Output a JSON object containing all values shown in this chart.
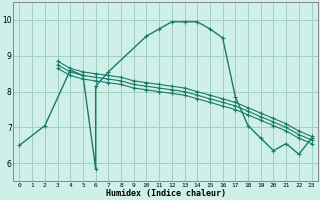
{
  "xlabel": "Humidex (Indice chaleur)",
  "xlim": [
    -0.5,
    23.5
  ],
  "ylim": [
    5.5,
    10.5
  ],
  "xticks": [
    0,
    1,
    2,
    3,
    4,
    5,
    6,
    7,
    8,
    9,
    10,
    11,
    12,
    13,
    14,
    15,
    16,
    17,
    18,
    19,
    20,
    21,
    22,
    23
  ],
  "yticks": [
    6,
    7,
    8,
    9,
    10
  ],
  "bg_color": "#cff0e8",
  "grid_color": "#a0cfc0",
  "line_color": "#1a7a6a",
  "lines": [
    {
      "x": [
        0,
        2,
        4,
        5,
        6,
        6,
        7,
        10,
        11,
        12,
        13,
        14,
        15,
        16,
        17,
        18,
        19,
        20,
        21,
        22,
        23
      ],
      "y": [
        6.5,
        7.05,
        8.6,
        8.45,
        5.85,
        8.15,
        8.55,
        9.55,
        9.75,
        9.95,
        9.95,
        9.95,
        9.75,
        9.5,
        7.85,
        7.05,
        6.7,
        6.35,
        6.55,
        6.25,
        6.7
      ]
    },
    {
      "x": [
        3,
        4,
        5,
        6,
        7,
        8,
        9,
        10,
        11,
        12,
        13,
        14,
        15,
        16,
        17,
        18,
        19,
        20,
        21,
        22,
        23
      ],
      "y": [
        8.85,
        8.65,
        8.55,
        8.5,
        8.45,
        8.4,
        8.3,
        8.25,
        8.2,
        8.15,
        8.1,
        8.0,
        7.9,
        7.8,
        7.7,
        7.55,
        7.4,
        7.25,
        7.1,
        6.9,
        6.75
      ]
    },
    {
      "x": [
        3,
        4,
        5,
        6,
        7,
        8,
        9,
        10,
        11,
        12,
        13,
        14,
        15,
        16,
        17,
        18,
        19,
        20,
        21,
        22,
        23
      ],
      "y": [
        8.75,
        8.55,
        8.45,
        8.4,
        8.35,
        8.3,
        8.2,
        8.15,
        8.1,
        8.05,
        8.0,
        7.9,
        7.8,
        7.7,
        7.6,
        7.45,
        7.3,
        7.15,
        7.0,
        6.8,
        6.65
      ]
    },
    {
      "x": [
        3,
        4,
        5,
        6,
        7,
        8,
        9,
        10,
        11,
        12,
        13,
        14,
        15,
        16,
        17,
        18,
        19,
        20,
        21,
        22,
        23
      ],
      "y": [
        8.65,
        8.45,
        8.35,
        8.3,
        8.25,
        8.2,
        8.1,
        8.05,
        8.0,
        7.95,
        7.9,
        7.8,
        7.7,
        7.6,
        7.5,
        7.35,
        7.2,
        7.05,
        6.9,
        6.7,
        6.55
      ]
    }
  ]
}
